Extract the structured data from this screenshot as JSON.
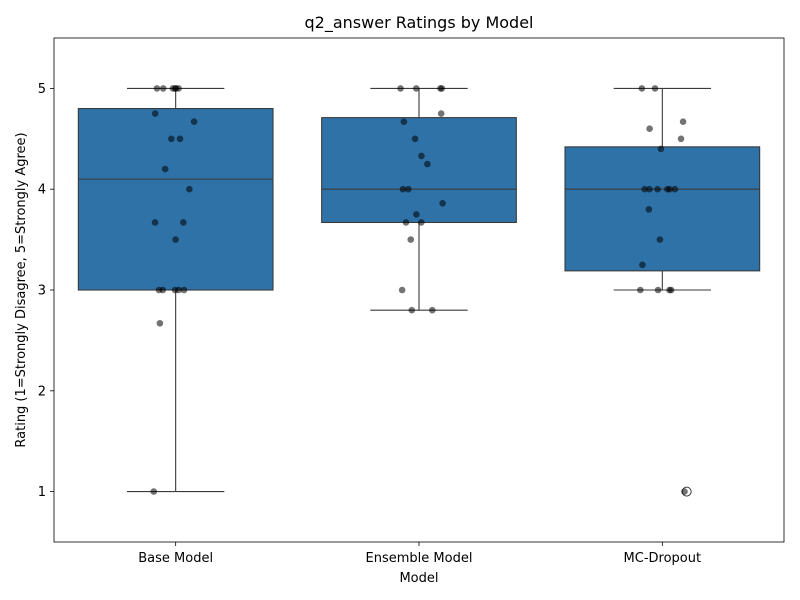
{
  "chart_data": {
    "type": "box",
    "title": "q2_answer Ratings by Model",
    "xlabel": "Model",
    "ylabel": "Rating (1=Strongly Disagree, 5=Strongly Agree)",
    "ylim": [
      0.5,
      5.5
    ],
    "yticks": [
      1,
      2,
      3,
      4,
      5
    ],
    "categories": [
      "Base Model",
      "Ensemble Model",
      "MC-Dropout"
    ],
    "box_color": "#2e72a8",
    "line_color": "#3a3a3a",
    "point_color": "#000000",
    "boxes": [
      {
        "name": "Base Model",
        "whisker_low": 1.0,
        "q1": 3.0,
        "median": 4.1,
        "q3": 4.8,
        "whisker_high": 5.0,
        "outliers": []
      },
      {
        "name": "Ensemble Model",
        "whisker_low": 2.8,
        "q1": 3.67,
        "median": 4.0,
        "q3": 4.71,
        "whisker_high": 5.0,
        "outliers": []
      },
      {
        "name": "MC-Dropout",
        "whisker_low": 3.0,
        "q1": 3.19,
        "median": 4.0,
        "q3": 4.42,
        "whisker_high": 5.0,
        "outliers": [
          1.0
        ]
      }
    ],
    "points": [
      [
        5.0,
        5.0,
        5.0,
        5.0,
        5.0,
        5.0,
        4.75,
        4.67,
        4.5,
        4.5,
        4.2,
        4.0,
        3.67,
        3.67,
        3.5,
        3.0,
        3.0,
        3.0,
        3.0,
        3.0,
        2.67,
        1.0
      ],
      [
        5.0,
        5.0,
        5.0,
        5.0,
        4.75,
        4.67,
        4.5,
        4.33,
        4.25,
        4.0,
        4.0,
        3.86,
        3.75,
        3.67,
        3.67,
        3.5,
        3.0,
        2.8,
        2.8
      ],
      [
        5.0,
        5.0,
        4.67,
        4.6,
        4.5,
        4.4,
        4.0,
        4.0,
        4.0,
        4.0,
        4.0,
        4.0,
        3.8,
        3.5,
        3.25,
        3.0,
        3.0,
        3.0,
        3.0,
        1.0
      ]
    ]
  }
}
